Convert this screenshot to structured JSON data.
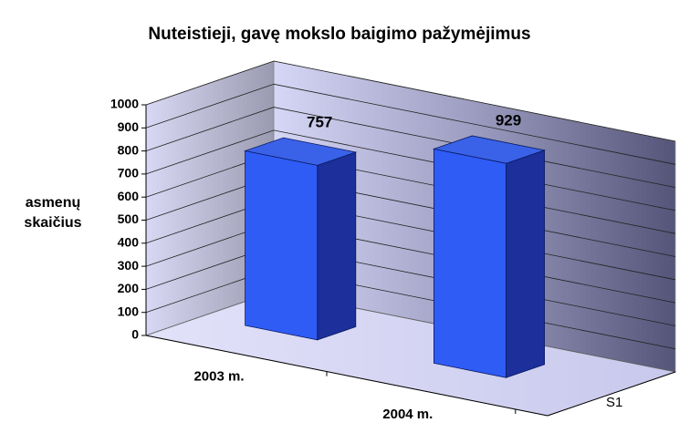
{
  "chart_data": {
    "type": "bar3d",
    "title": "Nuteistieji, gavę mokslo baigimo pažymėjimus",
    "ylabel": "asmenų skaičius",
    "categories": [
      "2003 m.",
      "2004 m."
    ],
    "series": [
      {
        "name": "S1",
        "color": "#2f5cf5",
        "values": [
          757,
          929
        ]
      }
    ],
    "ylim": [
      0,
      1000
    ],
    "yticks": [
      0,
      100,
      200,
      300,
      400,
      500,
      600,
      700,
      800,
      900,
      1000
    ],
    "grid": true
  }
}
